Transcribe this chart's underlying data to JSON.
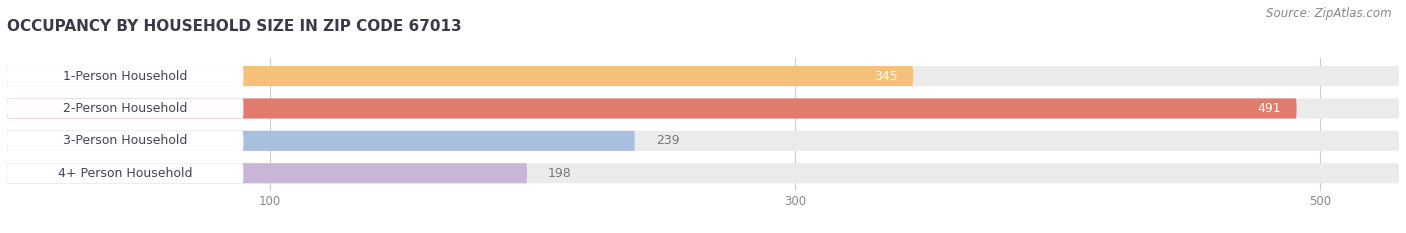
{
  "title": "OCCUPANCY BY HOUSEHOLD SIZE IN ZIP CODE 67013",
  "source": "Source: ZipAtlas.com",
  "categories": [
    "1-Person Household",
    "2-Person Household",
    "3-Person Household",
    "4+ Person Household"
  ],
  "values": [
    345,
    491,
    239,
    198
  ],
  "bar_colors": [
    "#f5c07a",
    "#e07b6e",
    "#a8bfdf",
    "#c9b5d5"
  ],
  "label_colors": [
    "#ffffff",
    "#ffffff",
    "#777777",
    "#777777"
  ],
  "xlim_max": 530,
  "xticks": [
    100,
    300,
    500
  ],
  "background_color": "#ffffff",
  "bar_bg_color": "#ebebeb",
  "label_bg_color": "#ffffff",
  "title_fontsize": 11,
  "source_fontsize": 8.5,
  "bar_label_fontsize": 9,
  "category_fontsize": 9,
  "title_color": "#3a3a4a",
  "category_text_color": "#444455",
  "tick_color": "#888888",
  "grid_color": "#cccccc"
}
